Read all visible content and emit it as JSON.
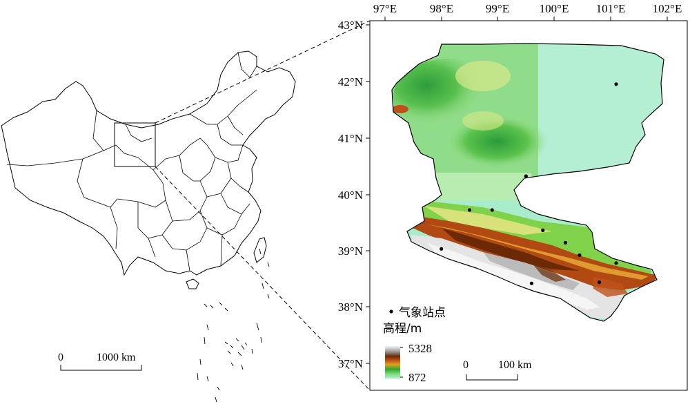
{
  "overview_map": {
    "scalebar": {
      "start": "0",
      "end": "1000 km"
    }
  },
  "study_map": {
    "lon_labels": [
      "97°E",
      "98°E",
      "99°E",
      "100°E",
      "101°E",
      "102°E"
    ],
    "lat_labels": [
      "43°N",
      "42°N",
      "41°N",
      "40°N",
      "39°N",
      "38°N",
      "37°N"
    ],
    "legend": {
      "station_label": "气象站点",
      "elevation_title": "高程/m",
      "elevation_max": "5328",
      "elevation_min": "872",
      "ramp_colors": [
        "#ffffff",
        "#9e9e9e",
        "#6b2a05",
        "#c0501a",
        "#e0a020",
        "#2ea82e",
        "#7dd87d",
        "#b0f0c8"
      ]
    },
    "scalebar": {
      "start": "0",
      "end": "100 km"
    },
    "stations": [
      {
        "lon": 101.1,
        "lat": 41.95
      },
      {
        "lon": 99.5,
        "lat": 40.32
      },
      {
        "lon": 98.5,
        "lat": 39.72
      },
      {
        "lon": 98.9,
        "lat": 39.72
      },
      {
        "lon": 99.8,
        "lat": 39.36
      },
      {
        "lon": 100.2,
        "lat": 39.14
      },
      {
        "lon": 100.45,
        "lat": 38.92
      },
      {
        "lon": 101.1,
        "lat": 38.78
      },
      {
        "lon": 98.0,
        "lat": 39.03
      },
      {
        "lon": 99.6,
        "lat": 38.42
      },
      {
        "lon": 100.8,
        "lat": 38.44
      }
    ]
  }
}
